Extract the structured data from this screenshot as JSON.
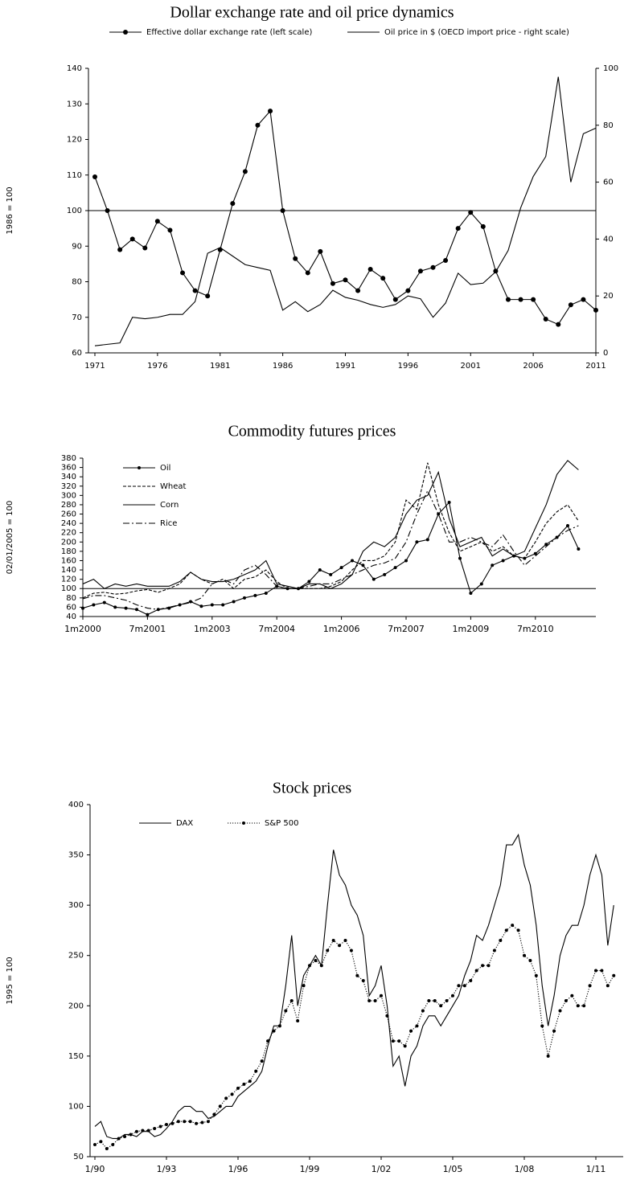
{
  "chart_data": [
    {
      "type": "line",
      "title": "Dollar exchange rate and oil price dynamics",
      "ylabel": "1986 = 100",
      "legend": "top",
      "hline": 100,
      "x": [
        1971,
        1972,
        1973,
        1974,
        1975,
        1976,
        1977,
        1978,
        1979,
        1980,
        1981,
        1982,
        1983,
        1984,
        1985,
        1986,
        1987,
        1988,
        1989,
        1990,
        1991,
        1992,
        1993,
        1994,
        1995,
        1996,
        1997,
        1998,
        1999,
        2000,
        2001,
        2002,
        2003,
        2004,
        2005,
        2006,
        2007,
        2008,
        2009,
        2010,
        2011
      ],
      "xlim": [
        1971,
        2011
      ],
      "xticks": [
        1971,
        1976,
        1981,
        1986,
        1991,
        1996,
        2001,
        2006,
        2011
      ],
      "ylim": [
        60,
        140
      ],
      "yticks": [
        60,
        70,
        80,
        90,
        100,
        110,
        120,
        130,
        140
      ],
      "y2lim": [
        0,
        100
      ],
      "y2ticks": [
        0,
        20,
        40,
        60,
        80,
        100
      ],
      "series": [
        {
          "name": "Effective dollar exchange rate (left scale)",
          "color": "#000000",
          "marker": "circle",
          "values": [
            109.5,
            100,
            89,
            92,
            89.5,
            97,
            94.5,
            82.5,
            77.5,
            76,
            89,
            102,
            111,
            124,
            128,
            100,
            86.5,
            82.5,
            88.5,
            79.5,
            80.5,
            77.5,
            83.5,
            81,
            75,
            77.5,
            83,
            84,
            86,
            95,
            99.5,
            95.5,
            83,
            75,
            75,
            75,
            69.5,
            68,
            73.5,
            75,
            72
          ]
        },
        {
          "name": "Oil price in $ (OECD import price - right scale)",
          "color": "#000000",
          "axis": "y2",
          "values": [
            2.5,
            3,
            3.5,
            12.5,
            12,
            12.5,
            13.5,
            13.5,
            18,
            35,
            37,
            34,
            31,
            30,
            29,
            15,
            18,
            14.5,
            17,
            22,
            19.5,
            18.5,
            17,
            16,
            17,
            20,
            19,
            12.5,
            17.5,
            28,
            24,
            24.5,
            28.5,
            36,
            51,
            62,
            69,
            97,
            60,
            77,
            79
          ]
        }
      ]
    },
    {
      "type": "line",
      "title": "Commodity futures prices",
      "ylabel": "02/01/2005 = 100",
      "legend": "upper left",
      "hline": 100,
      "categories": [
        "1m2000",
        null,
        null,
        null,
        null,
        null,
        "7m2001",
        null,
        null,
        null,
        null,
        null,
        "1m2003",
        null,
        null,
        null,
        null,
        null,
        "7m2004",
        null,
        null,
        null,
        null,
        null,
        "1m2006",
        null,
        null,
        null,
        null,
        null,
        "7m2007",
        null,
        null,
        null,
        null,
        null,
        "1m2009",
        null,
        null,
        null,
        null,
        null,
        "7m2010",
        null,
        null,
        null,
        null
      ],
      "ylim": [
        40,
        380
      ],
      "yticks": [
        40,
        60,
        80,
        100,
        120,
        140,
        160,
        180,
        200,
        220,
        240,
        260,
        280,
        300,
        320,
        340,
        360,
        380
      ],
      "series": [
        {
          "name": "Oil",
          "color": "#000000",
          "marker": "circle",
          "values": [
            58,
            65,
            70,
            60,
            58,
            55,
            44,
            55,
            58,
            65,
            72,
            62,
            65,
            65,
            72,
            80,
            85,
            90,
            105,
            100,
            100,
            115,
            140,
            130,
            145,
            160,
            150,
            120,
            130,
            145,
            160,
            200,
            205,
            260,
            285,
            165,
            90,
            110,
            150,
            160,
            170,
            165,
            175,
            195,
            210,
            235,
            185
          ]
        },
        {
          "name": "Wheat",
          "color": "#000000",
          "dash": "dashed",
          "values": [
            80,
            90,
            92,
            88,
            90,
            95,
            98,
            92,
            100,
            110,
            135,
            120,
            110,
            120,
            100,
            120,
            125,
            140,
            115,
            100,
            100,
            100,
            100,
            105,
            115,
            140,
            160,
            160,
            170,
            200,
            290,
            270,
            370,
            280,
            220,
            180,
            190,
            200,
            180,
            190,
            170,
            165,
            200,
            240,
            265,
            280,
            245
          ]
        },
        {
          "name": "Corn",
          "color": "#000000",
          "values": [
            110,
            120,
            100,
            110,
            105,
            110,
            105,
            105,
            105,
            115,
            135,
            120,
            115,
            115,
            120,
            130,
            140,
            160,
            110,
            105,
            100,
            110,
            110,
            100,
            110,
            130,
            180,
            200,
            190,
            210,
            260,
            290,
            300,
            350,
            250,
            190,
            200,
            210,
            170,
            185,
            170,
            180,
            230,
            280,
            345,
            375,
            355
          ]
        },
        {
          "name": "Rice",
          "color": "#000000",
          "dash": "dashdot",
          "values": [
            78,
            85,
            85,
            80,
            75,
            65,
            58,
            55,
            60,
            65,
            70,
            80,
            110,
            120,
            110,
            140,
            150,
            130,
            105,
            100,
            100,
            105,
            110,
            110,
            120,
            130,
            140,
            150,
            155,
            165,
            200,
            260,
            310,
            260,
            200,
            200,
            210,
            200,
            190,
            215,
            180,
            150,
            170,
            190,
            210,
            225,
            235
          ]
        }
      ]
    },
    {
      "type": "line",
      "title": "Stock prices",
      "ylabel": "1995 = 100",
      "legend": "upper left",
      "categories": [
        "1/90",
        null,
        null,
        null,
        null,
        null,
        null,
        null,
        null,
        null,
        null,
        null,
        "1/93",
        null,
        null,
        null,
        null,
        null,
        null,
        null,
        null,
        null,
        null,
        null,
        "1/96",
        null,
        null,
        null,
        null,
        null,
        null,
        null,
        null,
        null,
        null,
        null,
        "1/99",
        null,
        null,
        null,
        null,
        null,
        null,
        null,
        null,
        null,
        null,
        null,
        "1/02",
        null,
        null,
        null,
        null,
        null,
        null,
        null,
        null,
        null,
        null,
        null,
        "1/05",
        null,
        null,
        null,
        null,
        null,
        null,
        null,
        null,
        null,
        null,
        null,
        "1/08",
        null,
        null,
        null,
        null,
        null,
        null,
        null,
        null,
        null,
        null,
        null,
        "1/11",
        null,
        null,
        null
      ],
      "ylim": [
        50,
        400
      ],
      "yticks": [
        50,
        100,
        150,
        200,
        250,
        300,
        350,
        400
      ],
      "series": [
        {
          "name": "DAX",
          "color": "#000000",
          "values": [
            80,
            85,
            70,
            68,
            68,
            72,
            72,
            70,
            75,
            75,
            70,
            72,
            78,
            85,
            95,
            100,
            100,
            95,
            95,
            88,
            90,
            95,
            100,
            100,
            110,
            115,
            120,
            125,
            135,
            160,
            180,
            180,
            220,
            270,
            200,
            230,
            240,
            250,
            240,
            300,
            355,
            330,
            320,
            300,
            290,
            270,
            210,
            220,
            240,
            200,
            140,
            150,
            120,
            150,
            160,
            180,
            190,
            190,
            180,
            190,
            200,
            210,
            230,
            245,
            270,
            265,
            280,
            300,
            320,
            360,
            360,
            370,
            340,
            320,
            280,
            220,
            180,
            210,
            250,
            270,
            280,
            280,
            300,
            330,
            350,
            330,
            260,
            300
          ]
        },
        {
          "name": "S&P 500",
          "color": "#000000",
          "dash": "dotted",
          "marker": "circle",
          "values": [
            62,
            65,
            58,
            62,
            68,
            70,
            72,
            75,
            76,
            76,
            78,
            80,
            82,
            83,
            85,
            85,
            85,
            83,
            84,
            85,
            92,
            100,
            108,
            112,
            118,
            122,
            125,
            135,
            145,
            165,
            175,
            180,
            195,
            205,
            185,
            220,
            240,
            245,
            240,
            255,
            265,
            260,
            265,
            255,
            230,
            225,
            205,
            205,
            210,
            190,
            165,
            165,
            160,
            175,
            180,
            195,
            205,
            205,
            200,
            205,
            210,
            220,
            220,
            225,
            235,
            240,
            240,
            255,
            265,
            275,
            280,
            275,
            250,
            245,
            230,
            180,
            150,
            175,
            195,
            205,
            210,
            200,
            200,
            220,
            235,
            235,
            220,
            230
          ]
        }
      ]
    }
  ]
}
